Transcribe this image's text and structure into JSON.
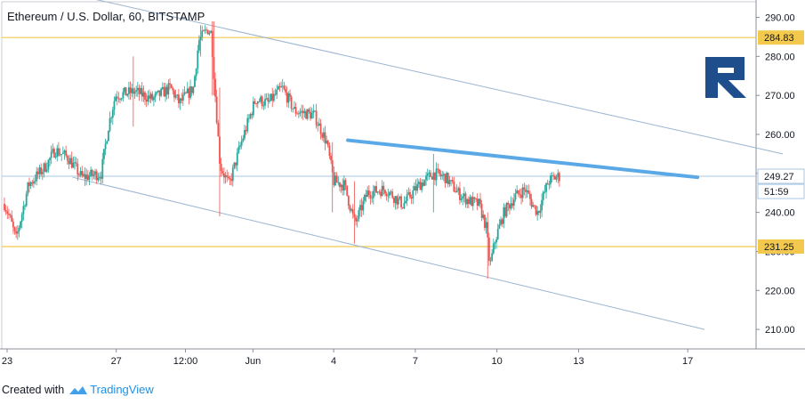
{
  "header": {
    "title": "Ethereum / U.S. Dollar, 60, BITSTAMP"
  },
  "footer": {
    "created_with": "Created with",
    "brand": "TradingView"
  },
  "colors": {
    "up": "#26a69a",
    "down": "#ef5350",
    "level": "#f2c94c",
    "channel": "#9ab4d0",
    "trend": "#5aa9e6",
    "logo": "#1f4e8c",
    "axis_text": "#131722"
  },
  "icons": {
    "brand_icon": "tradingview-cloud-icon",
    "logo": "r-logo-icon"
  },
  "chart_data": {
    "type": "candlestick",
    "ylim": [
      205,
      294
    ],
    "y_ticks": [
      "290.00",
      "280.00",
      "270.00",
      "260.00",
      "250.00",
      "240.00",
      "230.00",
      "220.00",
      "210.00"
    ],
    "x_ticks": [
      "23",
      "27",
      "12:00",
      "Jun",
      "4",
      "7",
      "10",
      "13",
      "17"
    ],
    "price_labels": [
      {
        "text": "284.83",
        "kind": "level"
      },
      {
        "text": "249.27",
        "kind": "current"
      },
      {
        "text": "51:59",
        "kind": "countdown"
      },
      {
        "text": "231.25",
        "kind": "level"
      }
    ],
    "levels": [
      284.83,
      231.25
    ],
    "current_price": 249.27,
    "candle_count": 380,
    "close_path": [
      [
        0,
        244
      ],
      [
        10,
        238
      ],
      [
        16,
        233
      ],
      [
        30,
        247
      ],
      [
        50,
        252
      ],
      [
        60,
        256
      ],
      [
        75,
        254
      ],
      [
        90,
        249
      ],
      [
        112,
        250
      ],
      [
        120,
        262
      ],
      [
        128,
        270
      ],
      [
        150,
        271
      ],
      [
        170,
        269
      ],
      [
        190,
        272
      ],
      [
        200,
        268
      ],
      [
        216,
        272
      ],
      [
        222,
        284
      ],
      [
        232,
        287
      ],
      [
        236,
        286
      ],
      [
        240,
        272
      ],
      [
        246,
        252
      ],
      [
        256,
        247
      ],
      [
        270,
        258
      ],
      [
        286,
        269
      ],
      [
        300,
        268
      ],
      [
        316,
        272
      ],
      [
        330,
        266
      ],
      [
        352,
        265
      ],
      [
        366,
        258
      ],
      [
        374,
        248
      ],
      [
        386,
        247
      ],
      [
        398,
        237
      ],
      [
        412,
        245
      ],
      [
        432,
        246
      ],
      [
        452,
        242
      ],
      [
        470,
        247
      ],
      [
        486,
        250
      ],
      [
        500,
        249
      ],
      [
        514,
        245
      ],
      [
        526,
        243
      ],
      [
        538,
        242
      ],
      [
        546,
        236
      ],
      [
        550,
        226
      ],
      [
        556,
        233
      ],
      [
        566,
        240
      ],
      [
        578,
        244
      ],
      [
        590,
        246
      ],
      [
        598,
        242
      ],
      [
        604,
        240
      ],
      [
        616,
        248
      ],
      [
        624,
        249
      ],
      [
        630,
        249.3
      ]
    ],
    "extreme_wicks": [
      [
        148,
        280,
        262
      ],
      [
        224,
        288,
        280
      ],
      [
        238,
        289,
        270
      ],
      [
        245,
        272,
        239
      ],
      [
        373,
        258,
        240
      ],
      [
        398,
        248,
        232
      ],
      [
        487,
        255,
        240
      ],
      [
        548,
        240,
        223
      ]
    ],
    "channel_upper": [
      [
        0,
        300
      ],
      [
        880,
        255
      ]
    ],
    "channel_lower": [
      [
        80,
        249
      ],
      [
        792,
        210
      ]
    ],
    "trend_line": [
      [
        390,
        258.5
      ],
      [
        784,
        249
      ]
    ]
  }
}
